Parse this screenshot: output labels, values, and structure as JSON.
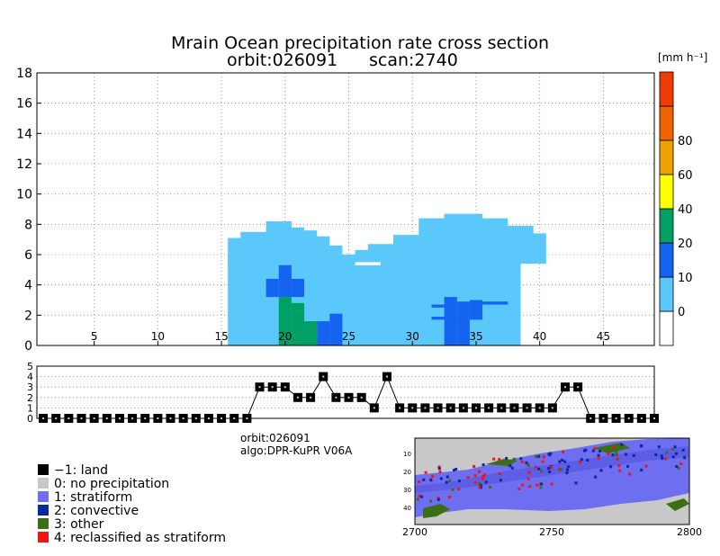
{
  "chart_data": [
    {
      "type": "heatmap",
      "title": "Mrain Ocean precipitation rate cross section",
      "subtitle_left": "orbit:026091",
      "subtitle_right": "scan:2740",
      "colorbar_unit": "[mm h⁻¹]",
      "xlim": [
        0.5,
        49
      ],
      "ylim": [
        0,
        18
      ],
      "x_ticks": [
        5,
        10,
        15,
        20,
        25,
        30,
        35,
        40,
        45
      ],
      "y_ticks": [
        0,
        2,
        4,
        6,
        8,
        10,
        12,
        14,
        16,
        18
      ],
      "grid": true,
      "color_levels": [
        {
          "label": "0",
          "color": "#5ac8fa"
        },
        {
          "label": "10",
          "color": "#1464f0"
        },
        {
          "label": "20",
          "color": "#00a064"
        },
        {
          "label": "40",
          "color": "#ffff00"
        },
        {
          "label": "60",
          "color": "#f0a000"
        },
        {
          "label": "80",
          "color": "#f06400"
        }
      ],
      "colorbar_top_color": "#f03c00",
      "colorbar_bottom_color": "#ffffff",
      "light_region_outline": [
        [
          15.5,
          0
        ],
        [
          15.5,
          7.1
        ],
        [
          16.5,
          7.1
        ],
        [
          16.5,
          7.5
        ],
        [
          18.5,
          7.5
        ],
        [
          18.5,
          8.2
        ],
        [
          20.5,
          8.2
        ],
        [
          20.5,
          7.8
        ],
        [
          21.5,
          7.8
        ],
        [
          21.5,
          7.6
        ],
        [
          22.5,
          7.6
        ],
        [
          22.5,
          7.2
        ],
        [
          23.5,
          7.2
        ],
        [
          23.5,
          6.6
        ],
        [
          24.5,
          6.6
        ],
        [
          24.5,
          6.0
        ],
        [
          25.5,
          6.0
        ],
        [
          25.5,
          6.3
        ],
        [
          26.5,
          6.3
        ],
        [
          26.5,
          6.7
        ],
        [
          28.5,
          6.7
        ],
        [
          28.5,
          7.3
        ],
        [
          30.5,
          7.3
        ],
        [
          30.5,
          8.4
        ],
        [
          32.5,
          8.4
        ],
        [
          32.5,
          8.7
        ],
        [
          35.5,
          8.7
        ],
        [
          35.5,
          8.4
        ],
        [
          37.5,
          8.4
        ],
        [
          37.5,
          7.9
        ],
        [
          39.5,
          7.9
        ],
        [
          39.5,
          7.4
        ],
        [
          40.5,
          7.4
        ],
        [
          40.5,
          5.4
        ],
        [
          38.5,
          5.4
        ],
        [
          38.5,
          0
        ]
      ],
      "light_blue_cells": [
        [
          17.5,
          1.5,
          18.5,
          1.9
        ],
        [
          15.5,
          5.4,
          16.5,
          6.0
        ],
        [
          17.5,
          2.8,
          18.5,
          3.6
        ]
      ],
      "white_bands": [
        [
          25.5,
          5.3,
          27.5,
          5.5
        ]
      ],
      "dark_blue_cells": [
        [
          18.5,
          3.2,
          19.5,
          4.4
        ],
        [
          19.5,
          3.2,
          20.5,
          5.3
        ],
        [
          20.5,
          3.2,
          21.5,
          4.4
        ],
        [
          22.5,
          0,
          23.5,
          1.6
        ],
        [
          23.5,
          0,
          24.5,
          2.1
        ],
        [
          31.5,
          2.5,
          32.5,
          2.7
        ],
        [
          32.5,
          0,
          33.5,
          3.2
        ],
        [
          33.5,
          0,
          34.5,
          2.9
        ],
        [
          34.5,
          1.7,
          35.5,
          3.0
        ],
        [
          35.5,
          2.7,
          37.5,
          2.9
        ],
        [
          31.5,
          1.7,
          33.5,
          1.9
        ],
        [
          18.5,
          3.3,
          19.0,
          3.5
        ]
      ],
      "green_cells": [
        [
          19.5,
          0,
          20.5,
          3.2
        ],
        [
          20.5,
          0,
          21.5,
          2.3
        ],
        [
          21.5,
          0,
          22.5,
          1.6
        ],
        [
          20.5,
          2.3,
          21.5,
          2.8
        ]
      ],
      "rain_type_strip": {
        "ylim": [
          0,
          5
        ],
        "y_ticks": [
          0,
          1,
          2,
          3,
          4,
          5
        ],
        "values": [
          0,
          0,
          0,
          0,
          0,
          0,
          0,
          0,
          0,
          0,
          0,
          0,
          0,
          0,
          0,
          0,
          0,
          3,
          3,
          3,
          2,
          2,
          4,
          2,
          2,
          2,
          1,
          4,
          1,
          1,
          1,
          1,
          1,
          1,
          1,
          1,
          1,
          1,
          1,
          1,
          1,
          3,
          3,
          0,
          0,
          0,
          0,
          0,
          0
        ]
      }
    }
  ],
  "info": {
    "orbit": "orbit:026091",
    "algo": "algo:DPR-KuPR V06A"
  },
  "legend": [
    {
      "label": "−1: land",
      "color": "#000000"
    },
    {
      "label": "0: no precipitation",
      "color": "#c8c8c8"
    },
    {
      "label": "1: stratiform",
      "color": "#6e6ef0"
    },
    {
      "label": "2: convective",
      "color": "#0a28a0"
    },
    {
      "label": "3: other",
      "color": "#3c6e14"
    },
    {
      "label": "4: reclassified as stratiform",
      "color": "#f01414"
    }
  ],
  "map": {
    "x_ticks": [
      "2700",
      "2750",
      "2800"
    ],
    "y_ticks": [
      "10",
      "20",
      "30",
      "40"
    ]
  }
}
